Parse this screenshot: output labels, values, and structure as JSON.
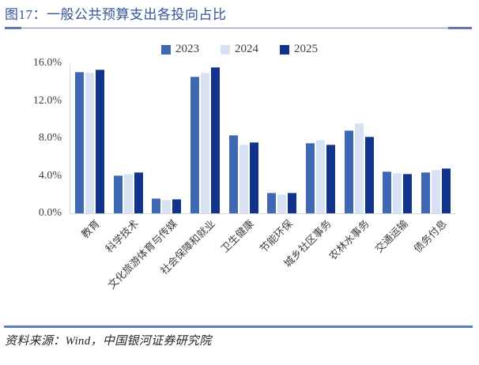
{
  "header": {
    "title": "图17：一般公共预算支出各投向占比"
  },
  "footer": {
    "source": "资料来源：Wind，中国银河证券研究院"
  },
  "chart_data": {
    "type": "bar",
    "title": "图17：一般公共预算支出各投向占比",
    "categories": [
      "教育",
      "科学技术",
      "文化旅游体育与传媒",
      "社会保障和就业",
      "卫生健康",
      "节能环保",
      "城乡社区事务",
      "农林水事务",
      "交通运输",
      "债务付息"
    ],
    "series": [
      {
        "name": "2023",
        "color": "#3F68B3",
        "values": [
          15.1,
          4.0,
          1.6,
          14.6,
          8.3,
          2.2,
          7.5,
          8.8,
          4.5,
          4.4
        ]
      },
      {
        "name": "2024",
        "color": "#D6E1F4",
        "values": [
          15.0,
          4.2,
          1.4,
          15.0,
          7.3,
          2.0,
          7.8,
          9.6,
          4.3,
          4.6
        ]
      },
      {
        "name": "2025",
        "color": "#12338C",
        "values": [
          15.3,
          4.4,
          1.5,
          15.6,
          7.6,
          2.2,
          7.3,
          8.2,
          4.2,
          4.8
        ]
      }
    ],
    "unit": "%",
    "ylim": [
      0,
      16
    ],
    "yticks": [
      16,
      12,
      8,
      4,
      0
    ],
    "ytick_labels": [
      "16.0%",
      "12.0%",
      "8.0%",
      "4.0%",
      "0.0%"
    ],
    "grid": false,
    "legend_position": "top-center"
  }
}
